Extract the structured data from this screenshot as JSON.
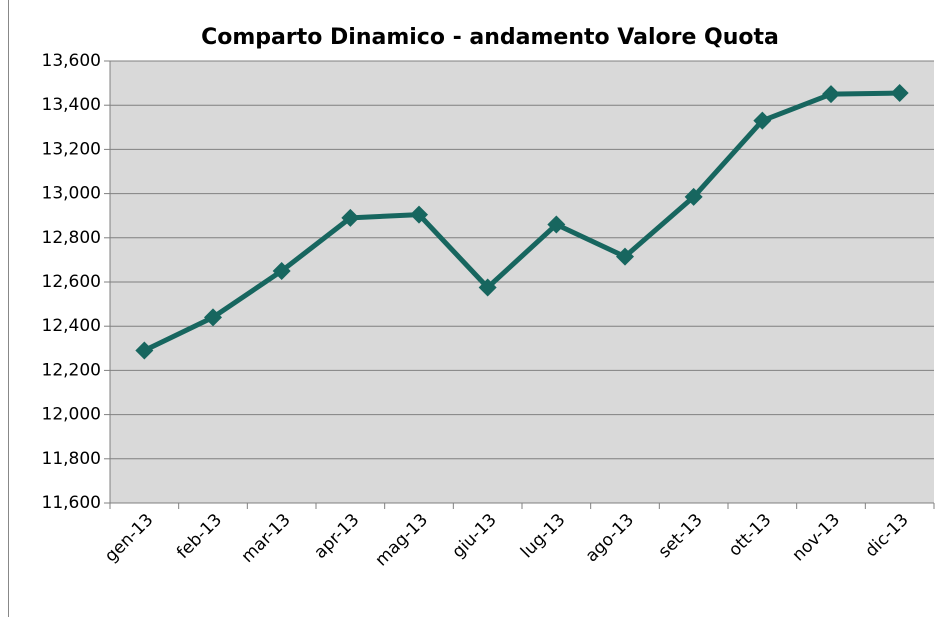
{
  "chart_data": {
    "type": "line",
    "title": "Comparto Dinamico - andamento Valore Quota",
    "categories": [
      "gen-13",
      "feb-13",
      "mar-13",
      "apr-13",
      "mag-13",
      "giu-13",
      "lug-13",
      "ago-13",
      "set-13",
      "ott-13",
      "nov-13",
      "dic-13"
    ],
    "series": [
      {
        "name": "Valore Quota",
        "color": "#17665f",
        "values": [
          12290,
          12440,
          12650,
          12890,
          12905,
          12575,
          12860,
          12715,
          12985,
          13330,
          13450,
          13455
        ]
      }
    ],
    "ylim": [
      11600,
      13600
    ],
    "yticks": [
      {
        "value": 11600,
        "label": "11,600"
      },
      {
        "value": 11800,
        "label": "11,800"
      },
      {
        "value": 12000,
        "label": "12,000"
      },
      {
        "value": 12200,
        "label": "12,200"
      },
      {
        "value": 12400,
        "label": "12,400"
      },
      {
        "value": 12600,
        "label": "12,600"
      },
      {
        "value": 12800,
        "label": "12,800"
      },
      {
        "value": 13000,
        "label": "13,000"
      },
      {
        "value": 13200,
        "label": "13,200"
      },
      {
        "value": 13400,
        "label": "13,400"
      },
      {
        "value": 13600,
        "label": "13,600"
      }
    ],
    "grid": true,
    "legend": false
  }
}
